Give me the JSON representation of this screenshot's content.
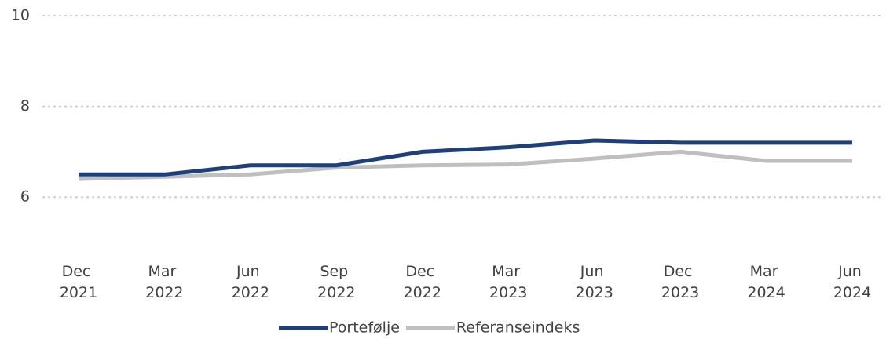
{
  "chart_data": {
    "type": "line",
    "categories": [
      "Dec 2021",
      "Mar 2022",
      "Jun 2022",
      "Sep 2022",
      "Dec 2022",
      "Mar 2023",
      "Jun 2023",
      "Dec 2023",
      "Mar 2024",
      "Jun 2024"
    ],
    "series": [
      {
        "name": "Portefølje",
        "color": "#1f3f7a",
        "values": [
          6.5,
          6.5,
          6.7,
          6.7,
          7.0,
          7.1,
          7.25,
          7.2,
          7.2,
          7.2
        ]
      },
      {
        "name": "Referanseindeks",
        "color": "#bfbfbf",
        "values": [
          6.4,
          6.45,
          6.5,
          6.65,
          6.7,
          6.72,
          6.85,
          7.0,
          6.8,
          6.8
        ]
      }
    ],
    "ylim": [
      5,
      10
    ],
    "yticks": [
      6,
      8,
      10
    ],
    "grid": true,
    "legend": "bottom"
  }
}
